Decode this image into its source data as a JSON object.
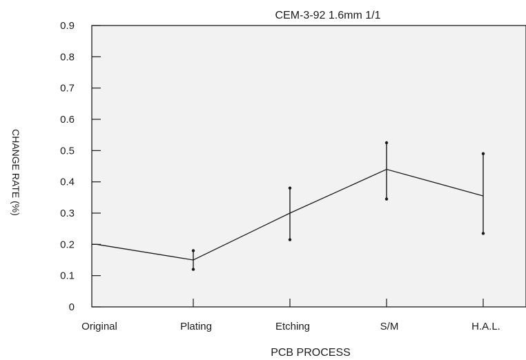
{
  "chart_data": {
    "type": "line",
    "title": "CEM-3-92 1.6mm 1/1",
    "xlabel": "PCB PROCESS",
    "ylabel": "CHANGE RATE (%)",
    "categories": [
      "Original",
      "Plating",
      "Etching",
      "S/M",
      "H.A.L."
    ],
    "ylim": [
      0,
      0.9
    ],
    "yticks": [
      "0",
      "0.1",
      "0.2",
      "0.3",
      "0.4",
      "0.5",
      "0.6",
      "0.7",
      "0.8",
      "0.9"
    ],
    "series": [
      {
        "values": [
          0.2,
          0.15,
          0.3,
          0.44,
          0.355
        ],
        "error_low": [
          null,
          0.12,
          0.215,
          0.345,
          0.235
        ],
        "error_high": [
          null,
          0.18,
          0.38,
          0.525,
          0.49
        ]
      }
    ],
    "grid": false,
    "plot_background": "#f2f2f2",
    "line_color": "#1a1a1a"
  }
}
